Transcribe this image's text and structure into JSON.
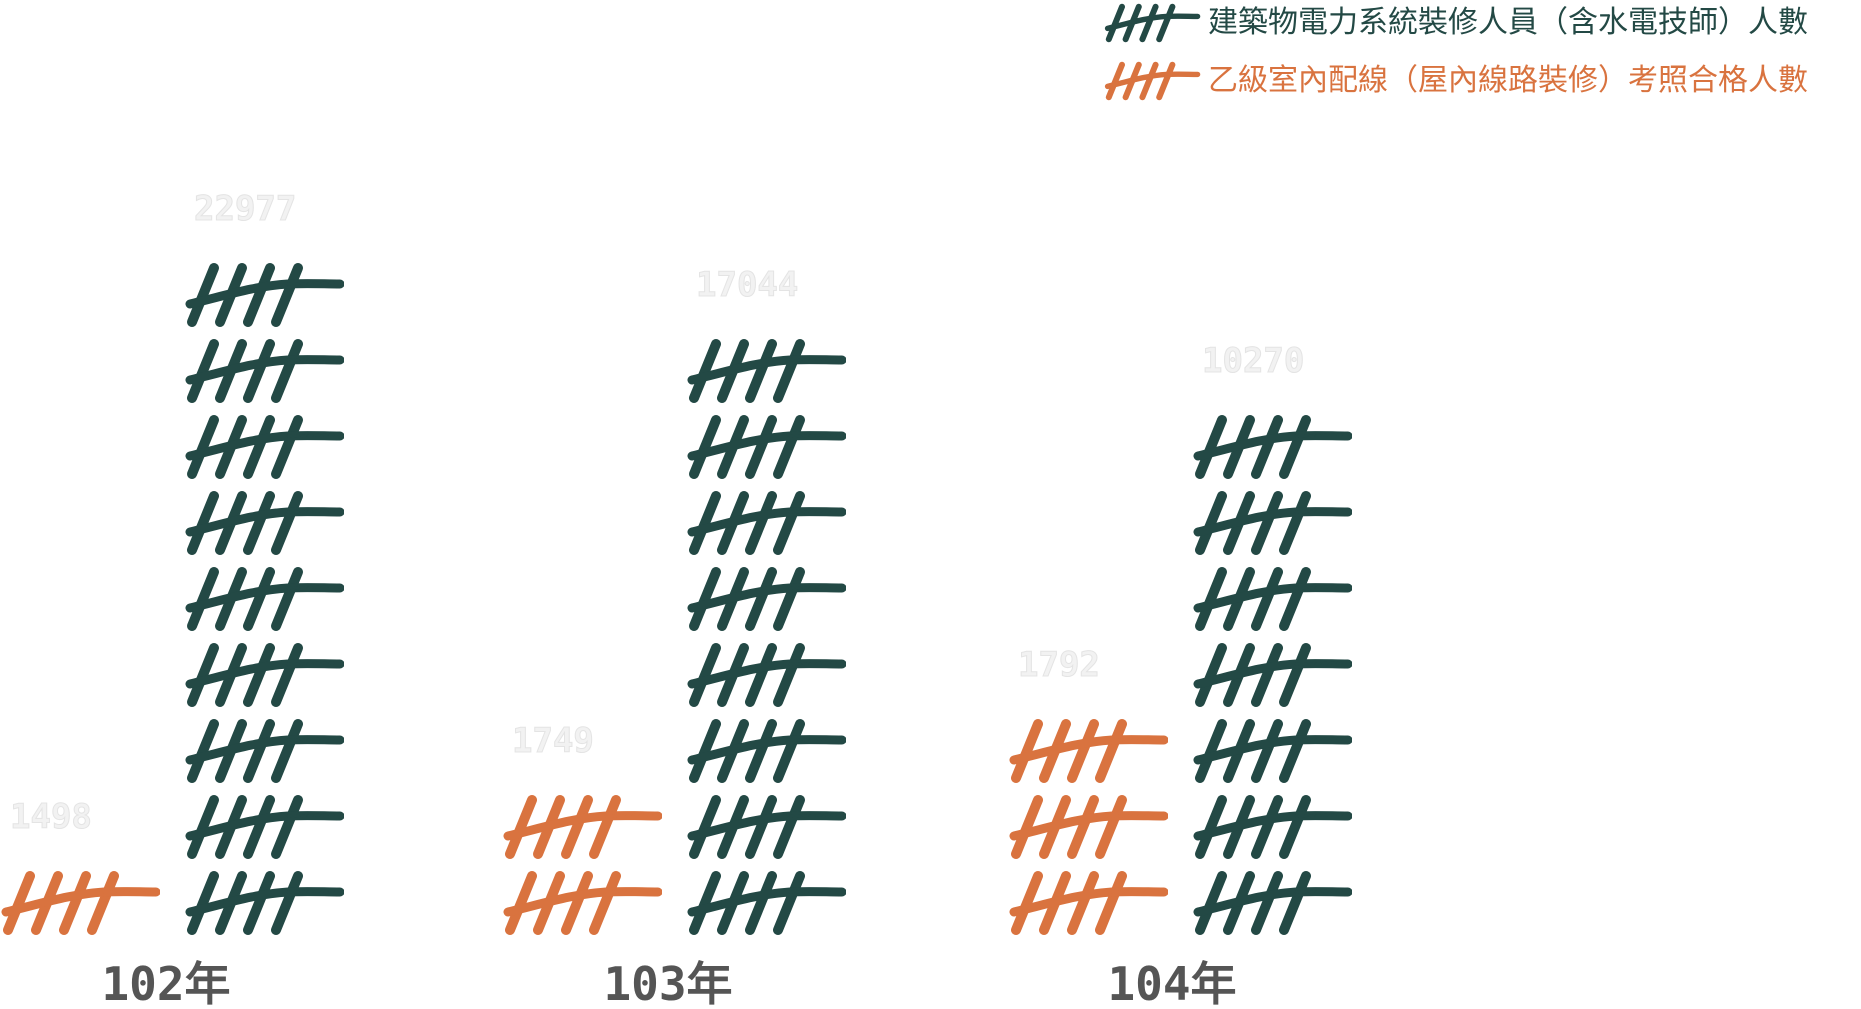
{
  "chart_data": {
    "type": "bar",
    "categories": [
      "102年",
      "103年",
      "104年"
    ],
    "series": [
      {
        "name": "乙級室內配線（屋內線路裝修）考照合格人數",
        "values": [
          1498,
          1749,
          1792
        ],
        "icons": [
          1,
          2,
          3
        ],
        "color": "#d9733f"
      },
      {
        "name": "建築物電力系統裝修人員（含水電技師）人數",
        "values": [
          22977,
          17044,
          10270
        ],
        "icons": [
          9,
          8,
          7
        ],
        "color": "#234945"
      }
    ],
    "legend_position": "top-right",
    "grid": false
  },
  "colors": {
    "orange": "#d9733f",
    "green": "#234945",
    "label_gray": "#555555"
  },
  "icon": "tally-marks-icon"
}
